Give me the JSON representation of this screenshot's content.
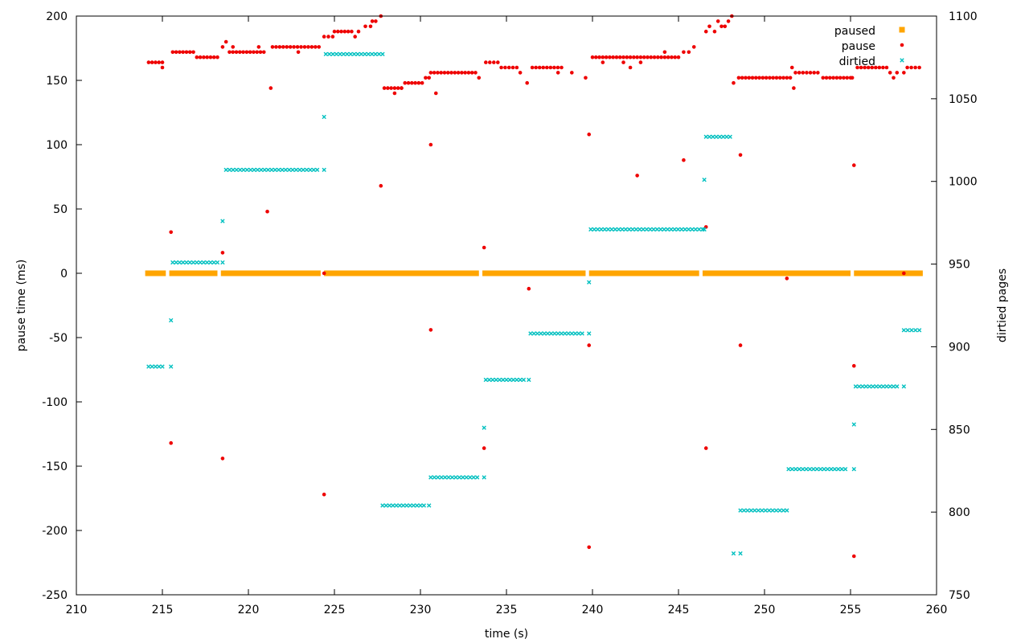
{
  "chart_data": {
    "type": "scatter",
    "xlabel": "time (s)",
    "ylabel": "pause time (ms)",
    "y2label": "dirtied pages",
    "xlim": [
      210,
      260
    ],
    "ylim": [
      -250,
      200
    ],
    "y2lim": [
      750,
      1100
    ],
    "xticks": [
      210,
      215,
      220,
      225,
      230,
      235,
      240,
      245,
      250,
      255,
      260
    ],
    "yticks": [
      -250,
      -200,
      -150,
      -100,
      -50,
      0,
      50,
      100,
      150,
      200
    ],
    "y2ticks": [
      750,
      800,
      850,
      900,
      950,
      1000,
      1050,
      1100
    ],
    "grid": false,
    "legend_position": "top-right",
    "series": [
      {
        "name": "paused",
        "axis": "y",
        "marker": "square",
        "color": "#ffa500",
        "segments": [
          [
            214.0,
            215.2
          ],
          [
            215.4,
            218.2
          ],
          [
            218.4,
            224.2
          ],
          [
            224.4,
            233.4
          ],
          [
            233.6,
            239.6
          ],
          [
            239.8,
            246.2
          ],
          [
            246.4,
            255.0
          ],
          [
            255.2,
            259.2
          ]
        ],
        "value": 0
      },
      {
        "name": "pause",
        "axis": "y",
        "marker": "circle",
        "color": "#ee0000",
        "runs": [
          {
            "x": [
              214.2,
              215.0
            ],
            "y": 164
          },
          {
            "x": [
              215.6,
              216.8
            ],
            "y": 172
          },
          {
            "x": [
              217.0,
              218.2
            ],
            "y": 168
          },
          {
            "x": [
              218.9,
              220.9
            ],
            "y": 172
          },
          {
            "x": [
              221.4,
              224.1
            ],
            "y": 176
          },
          {
            "x": [
              224.4,
              224.9
            ],
            "y": 184
          },
          {
            "x": [
              225.0,
              226.0
            ],
            "y": 188
          },
          {
            "x": [
              227.9,
              228.9
            ],
            "y": 144
          },
          {
            "x": [
              229.3,
              230.1
            ],
            "y": 148
          },
          {
            "x": [
              230.6,
              233.2
            ],
            "y": 156
          },
          {
            "x": [
              233.8,
              234.5
            ],
            "y": 164
          },
          {
            "x": [
              234.7,
              235.6
            ],
            "y": 160
          },
          {
            "x": [
              236.5,
              238.2
            ],
            "y": 160
          },
          {
            "x": [
              240.0,
              245.0
            ],
            "y": 168
          },
          {
            "x": [
              248.5,
              251.5
            ],
            "y": 152
          },
          {
            "x": [
              251.8,
              253.1
            ],
            "y": 156
          },
          {
            "x": [
              253.4,
              255.0
            ],
            "y": 152
          },
          {
            "x": [
              255.4,
              257.1
            ],
            "y": 160
          },
          {
            "x": [
              258.3,
              259.0
            ],
            "y": 160
          }
        ],
        "points": [
          [
            215.0,
            160
          ],
          [
            215.5,
            32
          ],
          [
            215.5,
            -132
          ],
          [
            218.5,
            -144
          ],
          [
            218.5,
            16
          ],
          [
            218.5,
            176
          ],
          [
            218.7,
            180
          ],
          [
            219.1,
            176
          ],
          [
            220.6,
            176
          ],
          [
            221.1,
            48
          ],
          [
            221.3,
            144
          ],
          [
            222.9,
            172
          ],
          [
            224.4,
            -172
          ],
          [
            224.4,
            0
          ],
          [
            226.2,
            184
          ],
          [
            226.4,
            188
          ],
          [
            226.8,
            192
          ],
          [
            227.1,
            192
          ],
          [
            227.2,
            196
          ],
          [
            227.4,
            196
          ],
          [
            227.7,
            200
          ],
          [
            227.7,
            68
          ],
          [
            228.5,
            140
          ],
          [
            228.9,
            144
          ],
          [
            229.1,
            148
          ],
          [
            230.3,
            152
          ],
          [
            230.5,
            152
          ],
          [
            230.6,
            -44
          ],
          [
            230.6,
            100
          ],
          [
            230.9,
            140
          ],
          [
            233.4,
            152
          ],
          [
            233.7,
            -136
          ],
          [
            233.7,
            20
          ],
          [
            235.8,
            156
          ],
          [
            236.2,
            148
          ],
          [
            236.3,
            -12
          ],
          [
            238.0,
            156
          ],
          [
            238.8,
            156
          ],
          [
            239.6,
            152
          ],
          [
            239.8,
            108
          ],
          [
            239.8,
            -56
          ],
          [
            239.8,
            -213
          ],
          [
            240.6,
            164
          ],
          [
            241.8,
            164
          ],
          [
            242.2,
            160
          ],
          [
            242.6,
            76
          ],
          [
            242.8,
            164
          ],
          [
            244.2,
            172
          ],
          [
            245.3,
            88
          ],
          [
            245.3,
            172
          ],
          [
            245.6,
            172
          ],
          [
            245.9,
            176
          ],
          [
            246.6,
            36
          ],
          [
            246.6,
            -136
          ],
          [
            246.6,
            188
          ],
          [
            246.8,
            192
          ],
          [
            247.1,
            188
          ],
          [
            247.3,
            196
          ],
          [
            247.5,
            192
          ],
          [
            247.7,
            192
          ],
          [
            247.9,
            196
          ],
          [
            248.1,
            200
          ],
          [
            248.2,
            148
          ],
          [
            248.6,
            92
          ],
          [
            248.6,
            -56
          ],
          [
            251.3,
            -4
          ],
          [
            251.6,
            160
          ],
          [
            251.7,
            144
          ],
          [
            255.2,
            -220
          ],
          [
            255.2,
            -72
          ],
          [
            255.2,
            84
          ],
          [
            255.1,
            152
          ],
          [
            257.3,
            156
          ],
          [
            257.5,
            152
          ],
          [
            257.7,
            156
          ],
          [
            258.1,
            0
          ],
          [
            258.1,
            156
          ]
        ]
      },
      {
        "name": "dirtied",
        "axis": "y2",
        "marker": "cross",
        "color": "#00c0c0",
        "runs": [
          {
            "x": [
              214.2,
              215.0
            ],
            "y": 888
          },
          {
            "x": [
              215.6,
              218.2
            ],
            "y": 951
          },
          {
            "x": [
              218.7,
              224.0
            ],
            "y": 1007
          },
          {
            "x": [
              224.5,
              227.8
            ],
            "y": 1077
          },
          {
            "x": [
              227.8,
              230.2
            ],
            "y": 804
          },
          {
            "x": [
              230.6,
              233.3
            ],
            "y": 821
          },
          {
            "x": [
              233.8,
              236.0
            ],
            "y": 880
          },
          {
            "x": [
              236.4,
              239.4
            ],
            "y": 908
          },
          {
            "x": [
              239.9,
              246.4
            ],
            "y": 971
          },
          {
            "x": [
              246.6,
              248.0
            ],
            "y": 1027
          },
          {
            "x": [
              248.6,
              251.1
            ],
            "y": 801
          },
          {
            "x": [
              251.4,
              254.7
            ],
            "y": 826
          },
          {
            "x": [
              255.3,
              257.7
            ],
            "y": 876
          },
          {
            "x": [
              258.1,
              259.0
            ],
            "y": 910
          }
        ],
        "points": [
          [
            215.5,
            888
          ],
          [
            215.5,
            916
          ],
          [
            218.5,
            951
          ],
          [
            218.5,
            976
          ],
          [
            224.4,
            1007
          ],
          [
            224.4,
            1039
          ],
          [
            230.5,
            804
          ],
          [
            233.7,
            821
          ],
          [
            233.7,
            851
          ],
          [
            236.3,
            880
          ],
          [
            239.8,
            908
          ],
          [
            239.8,
            939
          ],
          [
            246.5,
            971
          ],
          [
            246.5,
            1001
          ],
          [
            248.2,
            775
          ],
          [
            248.6,
            775
          ],
          [
            251.3,
            801
          ],
          [
            255.2,
            826
          ],
          [
            255.2,
            853
          ],
          [
            258.1,
            876
          ]
        ]
      }
    ]
  }
}
